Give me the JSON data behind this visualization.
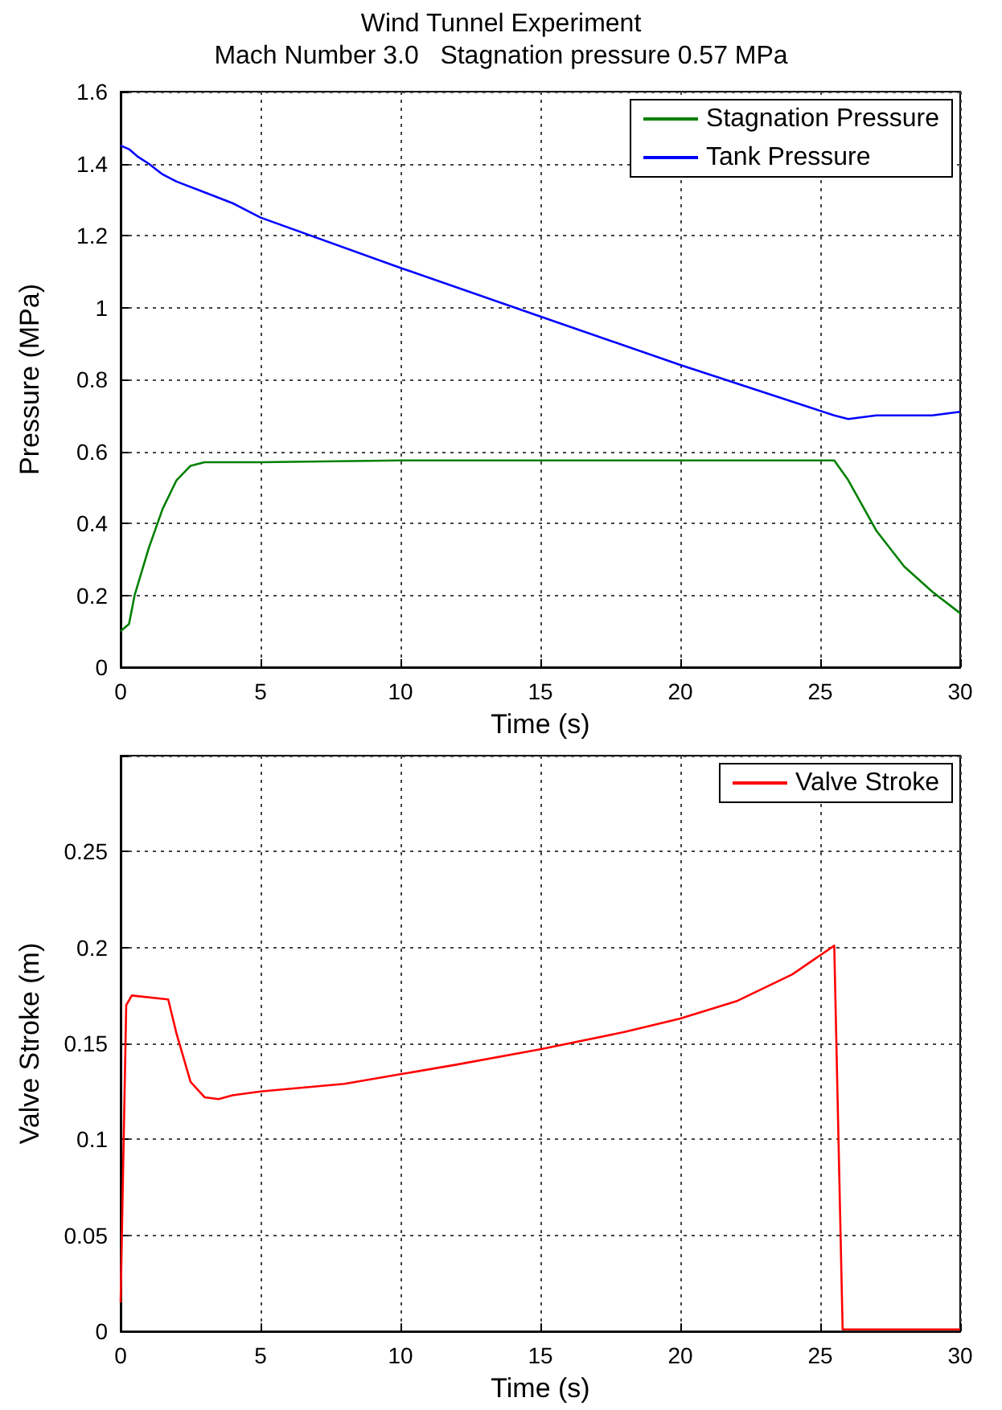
{
  "chart_data": [
    {
      "type": "line",
      "title": "Wind Tunnel Experiment",
      "subtitle": "Mach Number 3.0   Stagnation pressure 0.57 MPa",
      "xlabel": "Time (s)",
      "ylabel": "Pressure (MPa)",
      "xlim": [
        0,
        30
      ],
      "xticks": [
        0,
        5,
        10,
        15,
        20,
        25,
        30
      ],
      "ylim": [
        0,
        1.6
      ],
      "yticks": [
        0,
        0.2,
        0.4,
        0.6,
        0.8,
        1,
        1.2,
        1.4,
        1.6
      ],
      "grid": true,
      "legend": "top right",
      "line_style": "solid",
      "marker": "none",
      "series": [
        {
          "name": "Stagnation Pressure",
          "color": "#008000",
          "x": [
            0,
            0.3,
            0.5,
            1,
            1.5,
            2,
            2.5,
            3,
            4,
            5,
            10,
            15,
            20,
            25,
            25.5,
            26,
            27,
            28,
            29,
            30
          ],
          "values": [
            0.1,
            0.12,
            0.2,
            0.33,
            0.44,
            0.52,
            0.56,
            0.57,
            0.57,
            0.57,
            0.575,
            0.575,
            0.575,
            0.575,
            0.575,
            0.52,
            0.38,
            0.28,
            0.21,
            0.15
          ]
        },
        {
          "name": "Tank Pressure",
          "color": "#0000ff",
          "x": [
            0,
            0.3,
            0.6,
            1,
            1.5,
            2,
            3,
            4,
            5,
            10,
            15,
            20,
            25.5,
            26,
            27,
            28,
            29,
            30
          ],
          "values": [
            1.45,
            1.44,
            1.42,
            1.4,
            1.37,
            1.35,
            1.32,
            1.29,
            1.25,
            1.11,
            0.975,
            0.84,
            0.7,
            0.69,
            0.7,
            0.7,
            0.7,
            0.71
          ]
        }
      ]
    },
    {
      "type": "line",
      "xlabel": "Time (s)",
      "ylabel": "Valve Stroke (m)",
      "xlim": [
        0,
        30
      ],
      "xticks": [
        0,
        5,
        10,
        15,
        20,
        25,
        30
      ],
      "ylim": [
        0,
        0.3
      ],
      "yticks": [
        0,
        0.05,
        0.1,
        0.15,
        0.2,
        0.25,
        {
          "value": 0.3,
          "label": null
        }
      ],
      "grid": true,
      "legend": "top right",
      "line_style": "solid",
      "marker": "none",
      "series": [
        {
          "name": "Valve Stroke",
          "color": "#ff0000",
          "x": [
            0,
            0.2,
            0.4,
            1.7,
            2,
            2.5,
            3,
            3.5,
            4,
            5,
            8,
            10,
            12,
            15,
            18,
            20,
            22,
            24,
            25.5,
            25.8,
            30
          ],
          "values": [
            0.015,
            0.17,
            0.175,
            0.173,
            0.155,
            0.13,
            0.122,
            0.121,
            0.123,
            0.125,
            0.129,
            0.134,
            0.139,
            0.147,
            0.156,
            0.163,
            0.172,
            0.186,
            0.201,
            0.001,
            0.001
          ]
        }
      ]
    }
  ]
}
